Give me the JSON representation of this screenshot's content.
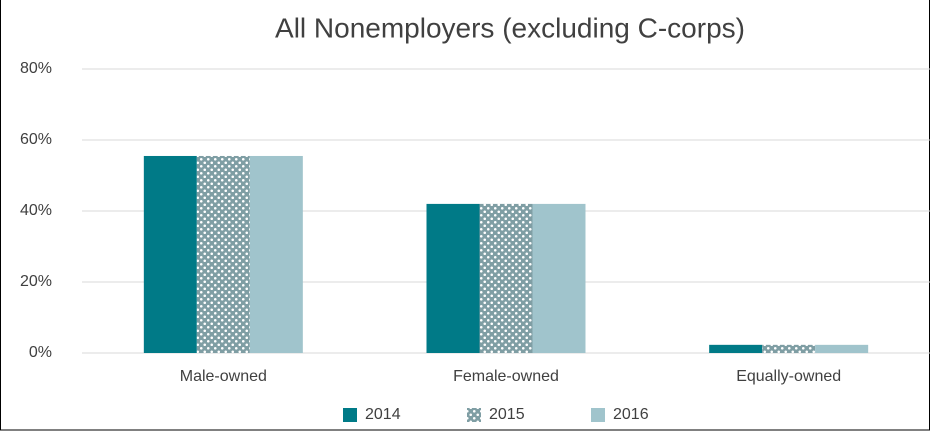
{
  "chart_data": {
    "type": "bar",
    "title": "All Nonemployers (excluding C-corps)",
    "categories": [
      "Male-owned",
      "Female-owned",
      "Equally-owned"
    ],
    "series": [
      {
        "name": "2014",
        "color": "#007a87",
        "values": [
          55.5,
          42.0,
          2.3
        ]
      },
      {
        "name": "2015",
        "color": "#7f9ea4",
        "pattern": "dots",
        "values": [
          55.5,
          42.0,
          2.3
        ]
      },
      {
        "name": "2016",
        "color": "#a0c4cc",
        "values": [
          55.5,
          42.0,
          2.3
        ]
      }
    ],
    "ylim": [
      0,
      80
    ],
    "yticks": [
      {
        "value": 0,
        "label": "0%"
      },
      {
        "value": 20,
        "label": "20%"
      },
      {
        "value": 40,
        "label": "40%"
      },
      {
        "value": 60,
        "label": "60%"
      },
      {
        "value": 80,
        "label": "80%"
      }
    ],
    "grid": true,
    "legend": "bottom"
  }
}
